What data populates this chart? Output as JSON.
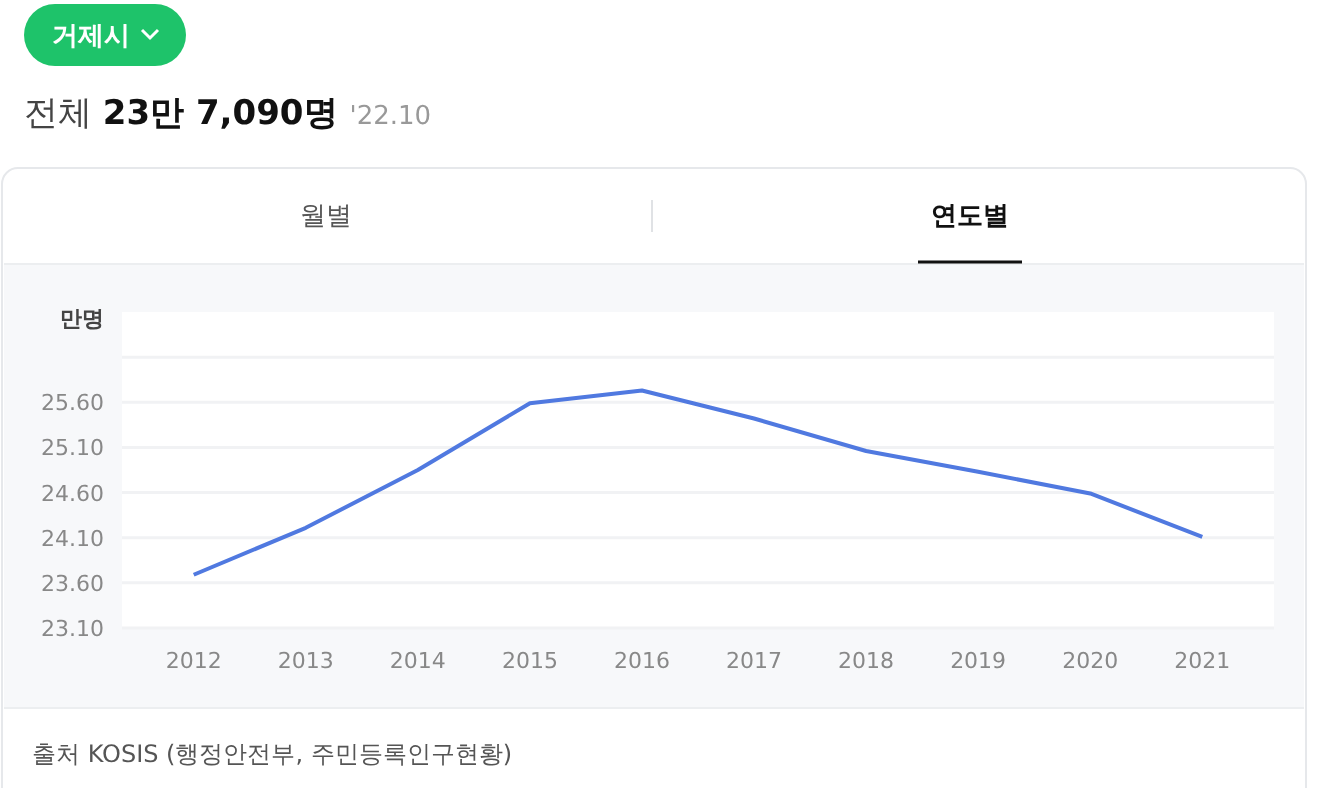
{
  "chart_data": {
    "type": "line",
    "title": "전체 23만 7,090명",
    "ylabel": "만명",
    "categories": [
      "2012",
      "2013",
      "2014",
      "2015",
      "2016",
      "2017",
      "2018",
      "2019",
      "2020",
      "2021"
    ],
    "series": [
      {
        "color": "#5079e0",
        "values": [
          23.69,
          24.21,
          24.85,
          25.59,
          25.73,
          25.42,
          25.06,
          24.83,
          24.59,
          24.11
        ]
      }
    ],
    "ylim": [
      23.1,
      26.6
    ],
    "yticks": [
      {
        "value": 23.1,
        "label": "23.10"
      },
      {
        "value": 23.6,
        "label": "23.60"
      },
      {
        "value": 24.1,
        "label": "24.10"
      },
      {
        "value": 24.6,
        "label": "24.60"
      },
      {
        "value": 25.1,
        "label": "25.10"
      },
      {
        "value": 25.6,
        "label": "25.60"
      },
      {
        "value": 26.1,
        "label": null
      }
    ],
    "grid": "y",
    "marker": "none",
    "line_style": "solid",
    "annotations": [
      "거제시",
      "'22.10",
      "월별",
      "연도별",
      "출처 KOSIS (행정안전부, 주민등록인구현황)"
    ]
  }
}
